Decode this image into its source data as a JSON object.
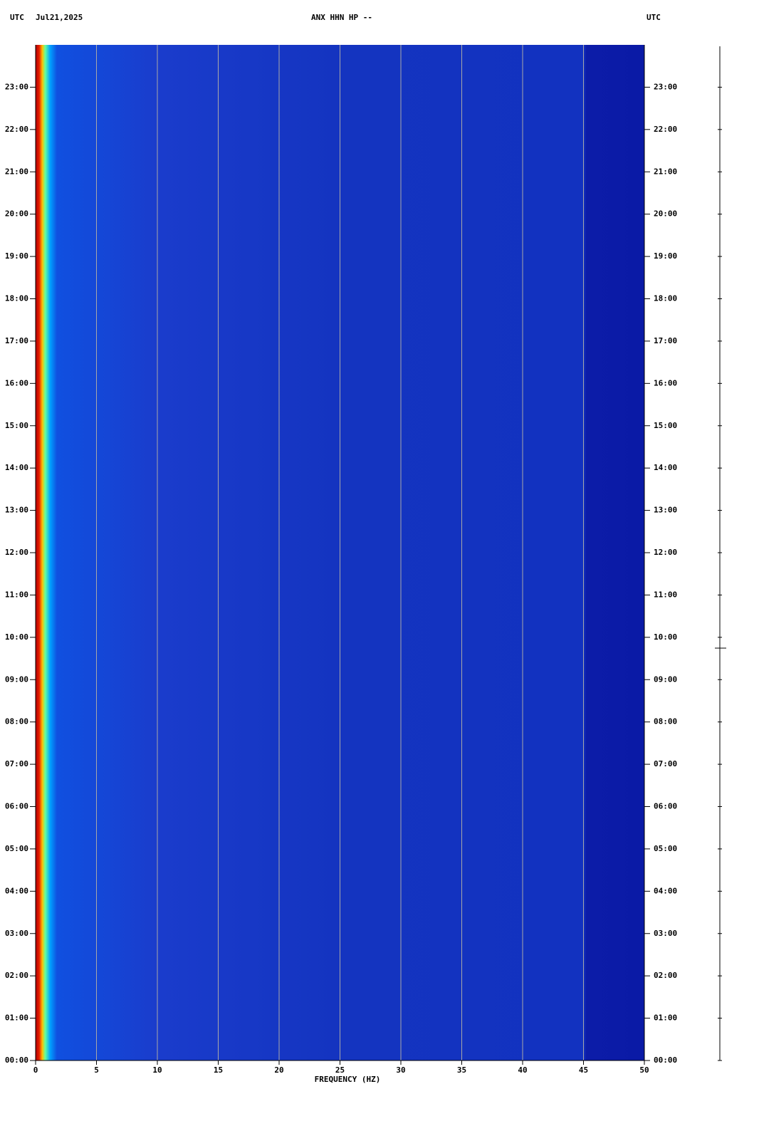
{
  "chart_data": {
    "type": "spectrogram",
    "left_label": "UTC",
    "date": "Jul21,2025",
    "title": "ANX HHN HP --",
    "right_label": "UTC",
    "xlabel": "FREQUENCY (HZ)",
    "xlim": [
      0,
      50
    ],
    "xticks": [
      0,
      5,
      10,
      15,
      20,
      25,
      30,
      35,
      40,
      45,
      50
    ],
    "ylim": [
      0,
      24
    ],
    "yticks": [
      {
        "value": 0,
        "label": "00:00"
      },
      {
        "value": 1,
        "label": "01:00"
      },
      {
        "value": 2,
        "label": "02:00"
      },
      {
        "value": 3,
        "label": "03:00"
      },
      {
        "value": 4,
        "label": "04:00"
      },
      {
        "value": 5,
        "label": "05:00"
      },
      {
        "value": 6,
        "label": "06:00"
      },
      {
        "value": 7,
        "label": "07:00"
      },
      {
        "value": 8,
        "label": "08:00"
      },
      {
        "value": 9,
        "label": "09:00"
      },
      {
        "value": 10,
        "label": "10:00"
      },
      {
        "value": 11,
        "label": "11:00"
      },
      {
        "value": 12,
        "label": "12:00"
      },
      {
        "value": 13,
        "label": "13:00"
      },
      {
        "value": 14,
        "label": "14:00"
      },
      {
        "value": 15,
        "label": "15:00"
      },
      {
        "value": 16,
        "label": "16:00"
      },
      {
        "value": 17,
        "label": "17:00"
      },
      {
        "value": 18,
        "label": "18:00"
      },
      {
        "value": 19,
        "label": "19:00"
      },
      {
        "value": 20,
        "label": "20:00"
      },
      {
        "value": 21,
        "label": "21:00"
      },
      {
        "value": 22,
        "label": "22:00"
      },
      {
        "value": 23,
        "label": "23:00"
      }
    ],
    "grid": true
  }
}
